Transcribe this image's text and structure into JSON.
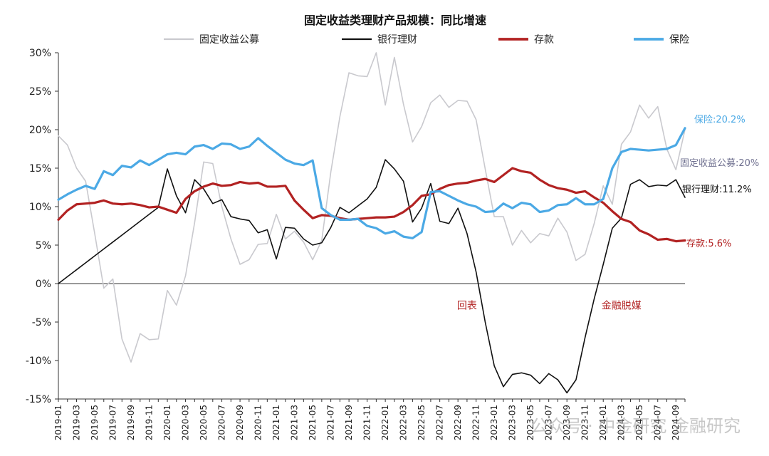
{
  "chart_data": {
    "type": "line",
    "title": "固定收益类理财产品规模：同比增速",
    "xlabel": "",
    "ylabel": "",
    "y_format": "percent",
    "ylim": [
      -15,
      30
    ],
    "yticks": [
      -15,
      -10,
      -5,
      0,
      5,
      10,
      15,
      20,
      25,
      30
    ],
    "grid": false,
    "legend_position": "top",
    "x": [
      "2019-01",
      "2019-02",
      "2019-03",
      "2019-04",
      "2019-05",
      "2019-06",
      "2019-07",
      "2019-08",
      "2019-09",
      "2019-10",
      "2019-11",
      "2019-12",
      "2020-01",
      "2020-02",
      "2020-03",
      "2020-04",
      "2020-05",
      "2020-06",
      "2020-07",
      "2020-08",
      "2020-09",
      "2020-10",
      "2020-11",
      "2020-12",
      "2021-01",
      "2021-02",
      "2021-03",
      "2021-04",
      "2021-05",
      "2021-06",
      "2021-07",
      "2021-08",
      "2021-09",
      "2021-10",
      "2021-11",
      "2021-12",
      "2022-01",
      "2022-02",
      "2022-03",
      "2022-04",
      "2022-05",
      "2022-06",
      "2022-07",
      "2022-08",
      "2022-09",
      "2022-10",
      "2022-11",
      "2022-12",
      "2023-01",
      "2023-02",
      "2023-03",
      "2023-04",
      "2023-05",
      "2023-06",
      "2023-07",
      "2023-08",
      "2023-09",
      "2023-10",
      "2023-11",
      "2023-12",
      "2024-01",
      "2024-02",
      "2024-03",
      "2024-04",
      "2024-05",
      "2024-06",
      "2024-07",
      "2024-08",
      "2024-09",
      "2024-10"
    ],
    "x_tick_labels": [
      "2019-01",
      "2019-03",
      "2019-05",
      "2019-07",
      "2019-09",
      "2019-11",
      "2020-01",
      "2020-03",
      "2020-05",
      "2020-07",
      "2020-09",
      "2020-11",
      "2021-01",
      "2021-03",
      "2021-05",
      "2021-07",
      "2021-09",
      "2021-11",
      "2022-01",
      "2022-03",
      "2022-05",
      "2022-07",
      "2022-09",
      "2022-11",
      "2023-01",
      "2023-03",
      "2023-05",
      "2023-07",
      "2023-09",
      "2023-11",
      "2024-01",
      "2024-03",
      "2024-05",
      "2024-07",
      "2024-09"
    ],
    "series": [
      {
        "name": "固定收益公募",
        "color": "#c9c9ce",
        "values": [
          19.2,
          18.0,
          15.0,
          13.3,
          6.5,
          -0.6,
          0.6,
          -7.2,
          -10.2,
          -6.5,
          -7.3,
          -7.2,
          -0.9,
          -2.8,
          1.0,
          7.9,
          15.8,
          15.6,
          10.0,
          5.8,
          2.5,
          3.1,
          5.1,
          5.2,
          9.0,
          5.8,
          6.8,
          5.4,
          3.1,
          5.6,
          14.5,
          21.7,
          27.4,
          27.0,
          26.9,
          30.0,
          23.2,
          29.4,
          23.3,
          18.4,
          20.4,
          23.5,
          24.5,
          22.9,
          23.8,
          23.7,
          21.3,
          14.9,
          8.7,
          8.7,
          5.0,
          6.9,
          5.3,
          6.5,
          6.2,
          8.5,
          6.7,
          3.0,
          3.8,
          7.8,
          12.7,
          10.3,
          18.1,
          19.7,
          23.2,
          21.5,
          23.0,
          17.5,
          14.8,
          20.0
        ]
      },
      {
        "name": "银行理财",
        "color": "#111111",
        "values": [
          0.0,
          0.9,
          1.8,
          2.7,
          3.6,
          4.5,
          5.4,
          6.3,
          7.2,
          8.1,
          9.0,
          9.9,
          14.9,
          11.4,
          9.2,
          13.5,
          12.3,
          10.4,
          10.9,
          8.7,
          8.4,
          8.2,
          6.6,
          7.0,
          3.2,
          7.3,
          7.2,
          5.8,
          5.0,
          5.3,
          7.3,
          9.9,
          9.2,
          10.1,
          11.0,
          12.5,
          16.1,
          14.9,
          13.3,
          8.0,
          9.8,
          13.0,
          8.1,
          7.8,
          9.8,
          6.5,
          1.5,
          -5.0,
          -10.7,
          -13.4,
          -11.8,
          -11.6,
          -11.9,
          -13.0,
          -11.7,
          -12.5,
          -14.2,
          -12.5,
          -7.0,
          -2.0,
          2.5,
          7.2,
          8.5,
          12.9,
          13.5,
          12.6,
          12.8,
          12.7,
          13.5,
          11.2
        ]
      },
      {
        "name": "存款",
        "color": "#b22222",
        "values": [
          8.3,
          9.5,
          10.3,
          10.4,
          10.5,
          10.8,
          10.4,
          10.3,
          10.4,
          10.2,
          9.9,
          10.0,
          9.6,
          9.2,
          11.0,
          12.0,
          12.6,
          13.0,
          12.7,
          12.8,
          13.2,
          13.0,
          13.1,
          12.6,
          12.6,
          12.7,
          10.8,
          9.6,
          8.5,
          8.9,
          8.8,
          8.5,
          8.3,
          8.4,
          8.5,
          8.6,
          8.6,
          8.7,
          9.3,
          10.2,
          11.4,
          11.6,
          12.3,
          12.8,
          13.0,
          13.1,
          13.4,
          13.6,
          13.2,
          14.1,
          15.0,
          14.6,
          14.4,
          13.5,
          12.8,
          12.4,
          12.2,
          11.8,
          12.0,
          11.2,
          10.5,
          9.4,
          8.4,
          8.0,
          6.9,
          6.4,
          5.7,
          5.8,
          5.5,
          5.6
        ]
      },
      {
        "name": "保险",
        "color": "#4ba9e5",
        "values": [
          10.9,
          11.6,
          12.2,
          12.7,
          12.3,
          14.6,
          14.1,
          15.3,
          15.1,
          16.0,
          15.4,
          16.1,
          16.8,
          17.0,
          16.8,
          17.8,
          18.0,
          17.5,
          18.2,
          18.1,
          17.5,
          17.8,
          18.9,
          17.9,
          17.0,
          16.1,
          15.6,
          15.4,
          16.0,
          9.8,
          8.9,
          8.3,
          8.3,
          8.4,
          7.5,
          7.2,
          6.5,
          6.8,
          6.1,
          5.9,
          6.7,
          11.9,
          12.0,
          11.4,
          10.8,
          10.3,
          10.0,
          9.3,
          9.4,
          10.4,
          9.8,
          10.5,
          10.3,
          9.3,
          9.5,
          10.2,
          10.3,
          11.1,
          10.3,
          10.3,
          11.0,
          15.0,
          17.1,
          17.5,
          17.4,
          17.3,
          17.4,
          17.5,
          18.0,
          20.2
        ]
      }
    ],
    "end_labels": [
      {
        "text": "保险:20.2%",
        "color": "#4ba9e5",
        "value": 20.2
      },
      {
        "text": "固定收益公募:20%",
        "color": "#6e6f8f",
        "value": 20.0
      },
      {
        "text": "银行理财:11.2%",
        "color": "#111111",
        "value": 11.2
      },
      {
        "text": "存款:5.6%",
        "color": "#b22222",
        "value": 5.6
      }
    ],
    "annotations": [
      {
        "text": "回表",
        "color": "#b22222",
        "x": "2022-10",
        "y": -3.3
      },
      {
        "text": "金融脱媒",
        "color": "#b22222",
        "x": "2024-03",
        "y": -3.3
      }
    ]
  },
  "watermark": "公众号 · 中金研究 金融研究"
}
